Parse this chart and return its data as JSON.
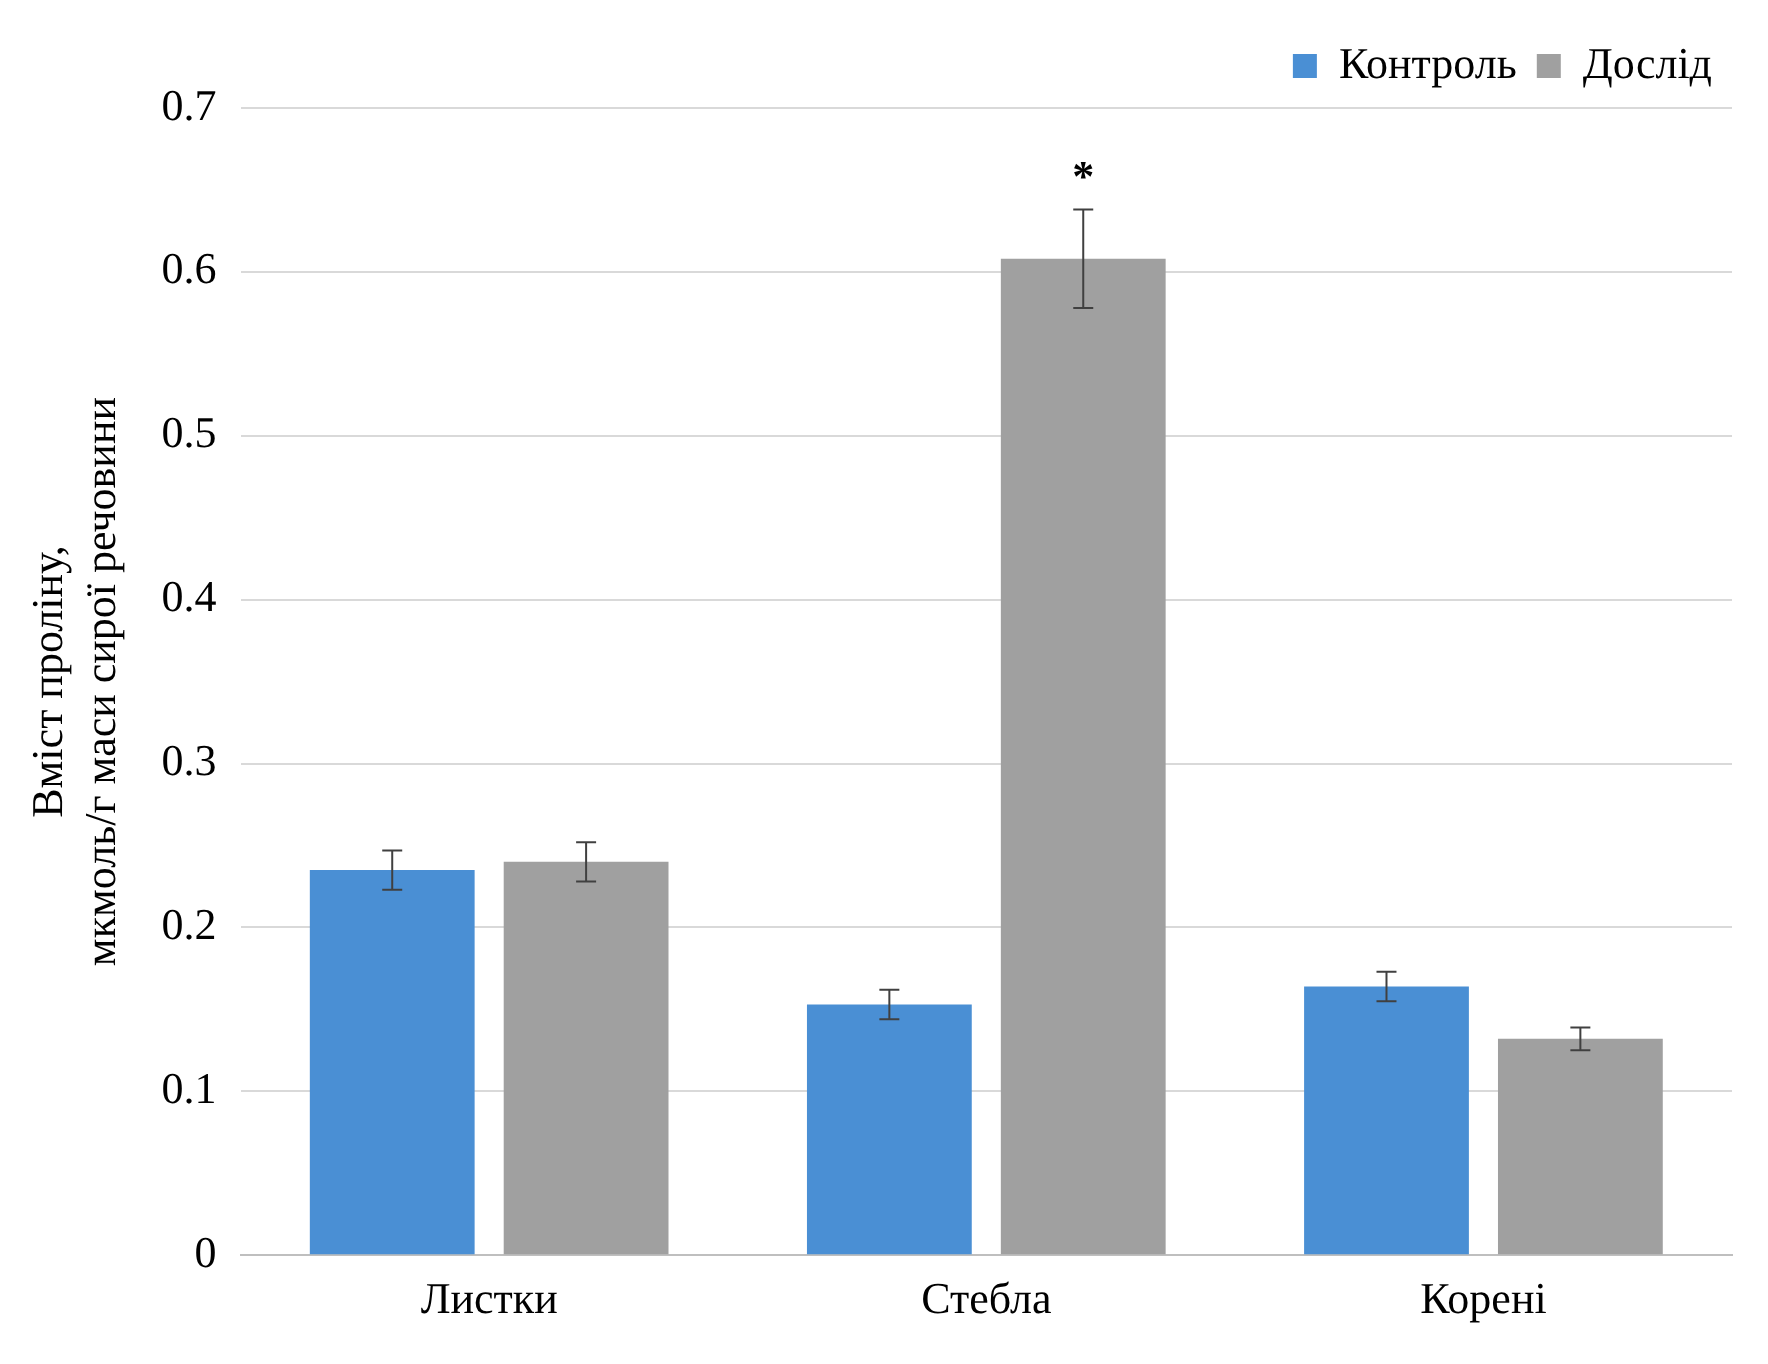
{
  "chart_data": {
    "type": "bar",
    "ylabel": "Вміст проліну,\nмкмоль/г маси сирої речовини",
    "categories": [
      "Листки",
      "Стебла",
      "Корені"
    ],
    "series": [
      {
        "name": "Контроль",
        "color": "#4a8fd4",
        "values": [
          0.235,
          0.153,
          0.164
        ],
        "errors": [
          0.012,
          0.009,
          0.009
        ]
      },
      {
        "name": "Дослід",
        "color": "#a0a0a0",
        "values": [
          0.24,
          0.608,
          0.132
        ],
        "errors": [
          0.012,
          0.03,
          0.007
        ]
      }
    ],
    "ylim": [
      0,
      0.7
    ],
    "yticks": [
      0,
      0.1,
      0.2,
      0.3,
      0.4,
      0.5,
      0.6,
      0.7
    ],
    "annotations": [
      "*"
    ],
    "grid": "y",
    "legend": "top right"
  }
}
